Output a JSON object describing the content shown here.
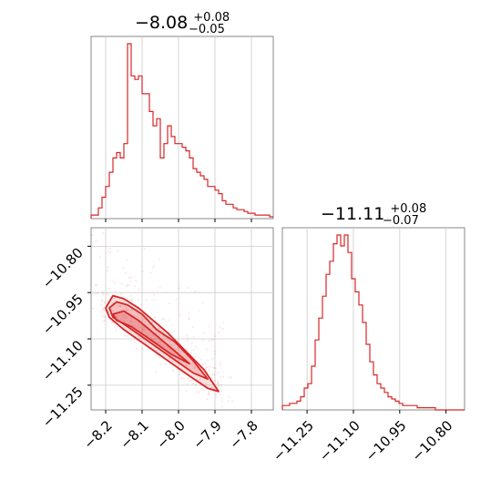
{
  "chart_data": {
    "type": "corner",
    "color": "#d62728",
    "grid": true,
    "panels": [
      {
        "kind": "histogram",
        "parameter_axis": [
          -8.25,
          -7.75
        ],
        "title_parts": {
          "value": "−8.08",
          "plus": "+0.08",
          "minus": "−0.05"
        },
        "bin_edges_start": -8.24,
        "bin_width": 0.01,
        "counts": [
          2,
          2,
          6,
          12,
          18,
          26,
          34,
          37,
          34,
          42,
          98,
          80,
          78,
          80,
          70,
          70,
          60,
          52,
          56,
          34,
          42,
          52,
          46,
          42,
          42,
          40,
          38,
          34,
          28,
          26,
          24,
          22,
          18,
          18,
          16,
          14,
          10,
          8,
          8,
          6,
          5,
          5,
          4,
          3,
          3,
          2,
          2,
          2,
          2,
          1
        ]
      },
      {
        "kind": "2d_contour",
        "x_range": [
          -8.24,
          -7.74
        ],
        "y_range": [
          -11.33,
          -10.74
        ],
        "x_ticks": [
          "−8.2",
          "−8.1",
          "−8.0",
          "−7.9",
          "−7.8"
        ],
        "x_tick_values": [
          -8.2,
          -8.1,
          -8.0,
          -7.9,
          -7.8
        ],
        "y_ticks": [
          "−10.80",
          "−10.95",
          "−11.10",
          "−11.25"
        ],
        "y_tick_values": [
          -10.8,
          -10.95,
          -11.1,
          -11.25
        ],
        "contours": [
          [
            [
              -8.2,
              -11.0
            ],
            [
              -8.18,
              -10.96
            ],
            [
              -8.15,
              -10.97
            ],
            [
              -8.11,
              -11.0
            ],
            [
              -8.07,
              -11.04
            ],
            [
              -8.03,
              -11.08
            ],
            [
              -7.98,
              -11.14
            ],
            [
              -7.93,
              -11.2
            ],
            [
              -7.89,
              -11.27
            ],
            [
              -7.92,
              -11.26
            ],
            [
              -7.97,
              -11.22
            ],
            [
              -8.03,
              -11.17
            ],
            [
              -8.09,
              -11.12
            ],
            [
              -8.15,
              -11.07
            ],
            [
              -8.19,
              -11.03
            ]
          ],
          [
            [
              -8.19,
              -11.0
            ],
            [
              -8.17,
              -10.98
            ],
            [
              -8.14,
              -10.99
            ],
            [
              -8.1,
              -11.02
            ],
            [
              -8.06,
              -11.07
            ],
            [
              -8.01,
              -11.11
            ],
            [
              -7.96,
              -11.17
            ],
            [
              -7.92,
              -11.23
            ],
            [
              -7.96,
              -11.21
            ],
            [
              -8.02,
              -11.16
            ],
            [
              -8.08,
              -11.11
            ],
            [
              -8.14,
              -11.06
            ],
            [
              -8.18,
              -11.03
            ]
          ],
          [
            [
              -8.18,
              -11.02
            ],
            [
              -8.15,
              -11.01
            ],
            [
              -8.11,
              -11.04
            ],
            [
              -8.06,
              -11.09
            ],
            [
              -8.01,
              -11.14
            ],
            [
              -7.97,
              -11.18
            ],
            [
              -8.02,
              -11.15
            ],
            [
              -8.08,
              -11.1
            ],
            [
              -8.13,
              -11.06
            ],
            [
              -8.17,
              -11.04
            ]
          ]
        ]
      },
      {
        "kind": "histogram",
        "parameter_axis": [
          -11.33,
          -10.74
        ],
        "title_parts": {
          "value": "−11.11",
          "plus": "+0.08",
          "minus": "−0.07"
        },
        "x_ticks": [
          "−11.25",
          "−11.10",
          "−10.95",
          "−10.80"
        ],
        "x_tick_values": [
          -11.25,
          -11.1,
          -10.95,
          -10.8
        ],
        "bin_edges_start": -11.33,
        "bin_width": 0.0118,
        "counts": [
          2,
          2,
          3,
          3,
          4,
          6,
          10,
          12,
          20,
          32,
          42,
          52,
          62,
          68,
          76,
          80,
          75,
          80,
          72,
          60,
          54,
          48,
          40,
          30,
          22,
          16,
          12,
          10,
          8,
          6,
          5,
          4,
          3,
          2,
          2,
          2,
          2,
          1,
          1,
          1,
          1,
          1,
          0,
          0,
          0,
          0,
          0,
          0,
          0,
          0
        ]
      }
    ]
  }
}
